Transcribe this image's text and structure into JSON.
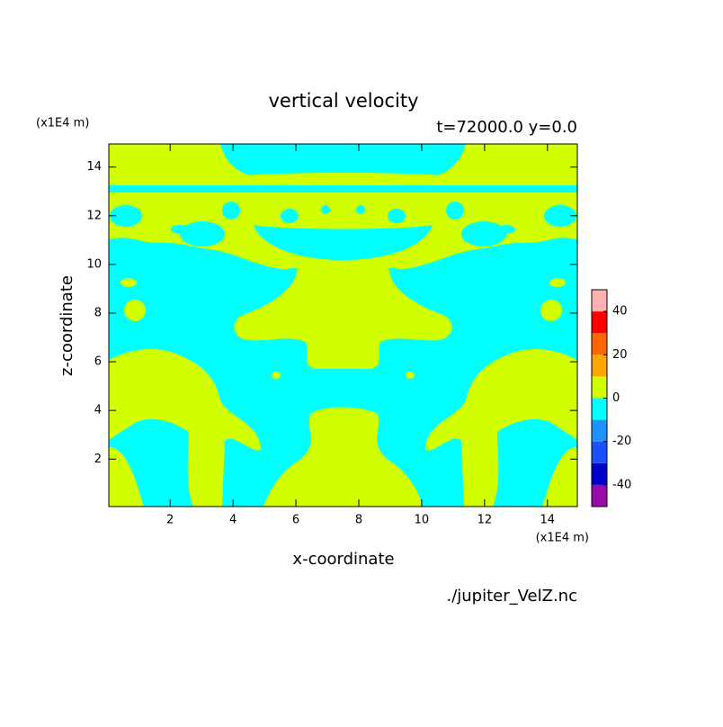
{
  "chart_data": {
    "type": "contour",
    "title": "vertical velocity",
    "subtitle": "t=72000.0 y=0.0",
    "xlabel": "x-coordinate",
    "ylabel": "z-coordinate",
    "xunit": "(x1E4 m)",
    "yunit": "(x1E4 m)",
    "source": "./jupiter_VelZ.nc",
    "xlim": [
      0.05,
      14.95
    ],
    "ylim": [
      0.05,
      14.95
    ],
    "xticks": [
      2,
      4,
      6,
      8,
      10,
      12,
      14
    ],
    "yticks": [
      2,
      4,
      6,
      8,
      10,
      12,
      14
    ],
    "colorbar": {
      "bounds": [
        -50,
        -40,
        -30,
        -20,
        -10,
        0,
        10,
        20,
        30,
        40,
        50
      ],
      "colors": [
        "#9a0aa8",
        "#0000cd",
        "#1a50ff",
        "#1e90ff",
        "#00ffff",
        "#d2ff00",
        "#ffa500",
        "#ff6600",
        "#ff0000",
        "#ffb0b0"
      ],
      "ticks": [
        -40,
        -20,
        0,
        20,
        40
      ]
    }
  }
}
